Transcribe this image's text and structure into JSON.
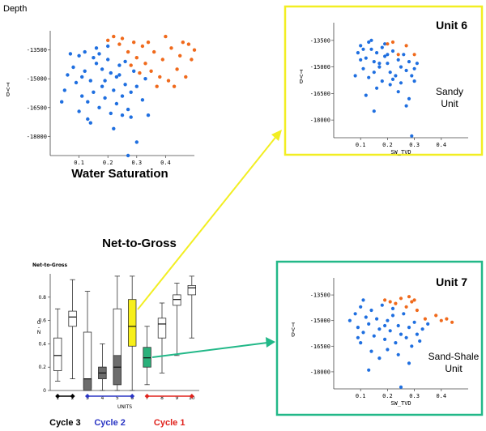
{
  "colors": {
    "blue": "#1f6fe0",
    "orange": "#f06a1c",
    "yellow_frame": "#f2ee22",
    "teal_frame": "#22b888",
    "yellow_box": "#f7ef1a",
    "teal_box": "#2ab07a",
    "grey_box": "#6d6d6d",
    "cycle3": "#000000",
    "cycle2": "#2a35c4",
    "cycle1": "#e0221c"
  },
  "chart_data": [
    {
      "type": "scatter",
      "panel": "main",
      "ylabel_top": "Depth",
      "ylabel": "TVD",
      "xlabel": "Water Saturation",
      "x_ticks": [
        "0.1",
        "0.2",
        "0.3",
        "0.4"
      ],
      "y_ticks": [
        "-13500",
        "-15000",
        "-16500",
        "-18000"
      ],
      "xlim": [
        0.0,
        0.5
      ],
      "ylim": [
        -19000,
        -12500
      ],
      "series": [
        {
          "color": "blue",
          "points": [
            [
              0.08,
              -14400
            ],
            [
              0.1,
              -13800
            ],
            [
              0.12,
              -14600
            ],
            [
              0.14,
              -15100
            ],
            [
              0.16,
              -14200
            ],
            [
              0.18,
              -15400
            ],
            [
              0.2,
              -14000
            ],
            [
              0.22,
              -15600
            ],
            [
              0.24,
              -14800
            ],
            [
              0.26,
              -15300
            ],
            [
              0.11,
              -15900
            ],
            [
              0.13,
              -16200
            ],
            [
              0.15,
              -15700
            ],
            [
              0.17,
              -16500
            ],
            [
              0.19,
              -16000
            ],
            [
              0.21,
              -16800
            ],
            [
              0.23,
              -16300
            ],
            [
              0.25,
              -15900
            ],
            [
              0.27,
              -16600
            ],
            [
              0.09,
              -15200
            ],
            [
              0.12,
              -13600
            ],
            [
              0.15,
              -13900
            ],
            [
              0.18,
              -14500
            ],
            [
              0.21,
              -14700
            ],
            [
              0.24,
              -14300
            ],
            [
              0.28,
              -15700
            ],
            [
              0.3,
              -15400
            ],
            [
              0.32,
              -16100
            ],
            [
              0.14,
              -17300
            ],
            [
              0.28,
              -17000
            ],
            [
              0.3,
              -18300
            ],
            [
              0.27,
              -19000
            ],
            [
              0.06,
              -14800
            ],
            [
              0.05,
              -15600
            ],
            [
              0.04,
              -16200
            ],
            [
              0.16,
              -13400
            ],
            [
              0.2,
              -13300
            ],
            [
              0.1,
              -16700
            ],
            [
              0.13,
              -17100
            ],
            [
              0.22,
              -17600
            ],
            [
              0.34,
              -16900
            ],
            [
              0.07,
              -13700
            ],
            [
              0.19,
              -15100
            ],
            [
              0.23,
              -14900
            ],
            [
              0.26,
              -14100
            ],
            [
              0.29,
              -14600
            ],
            [
              0.33,
              -15000
            ],
            [
              0.11,
              -14900
            ],
            [
              0.17,
              -13700
            ],
            [
              0.25,
              -16900
            ]
          ]
        },
        {
          "color": "orange",
          "points": [
            [
              0.2,
              -13000
            ],
            [
              0.24,
              -13200
            ],
            [
              0.27,
              -13600
            ],
            [
              0.3,
              -13900
            ],
            [
              0.33,
              -14200
            ],
            [
              0.36,
              -13600
            ],
            [
              0.39,
              -14000
            ],
            [
              0.42,
              -13400
            ],
            [
              0.45,
              -13800
            ],
            [
              0.48,
              -13200
            ],
            [
              0.35,
              -14600
            ],
            [
              0.38,
              -14900
            ],
            [
              0.41,
              -15100
            ],
            [
              0.44,
              -14500
            ],
            [
              0.47,
              -14900
            ],
            [
              0.32,
              -13300
            ],
            [
              0.29,
              -13100
            ],
            [
              0.25,
              -12900
            ],
            [
              0.49,
              -14000
            ],
            [
              0.43,
              -15400
            ],
            [
              0.37,
              -15400
            ],
            [
              0.34,
              -13100
            ],
            [
              0.4,
              -12800
            ],
            [
              0.46,
              -13100
            ],
            [
              0.28,
              -14300
            ],
            [
              0.31,
              -14700
            ],
            [
              0.5,
              -13500
            ],
            [
              0.22,
              -12800
            ]
          ]
        }
      ]
    },
    {
      "type": "scatter",
      "panel": "unit6",
      "title": "Unit 6",
      "annotation": "Sandy Unit",
      "xlabel": "SW_TVD",
      "ylabel": "TVD",
      "x_ticks": [
        "0.1",
        "0.2",
        "0.3",
        "0.4"
      ],
      "y_ticks": [
        "-13500",
        "-15000",
        "-16500",
        "-18000"
      ],
      "xlim": [
        0.0,
        0.5
      ],
      "ylim": [
        -19000,
        -12500
      ],
      "series": [
        {
          "color": "blue",
          "points": [
            [
              0.09,
              -14200
            ],
            [
              0.1,
              -13800
            ],
            [
              0.12,
              -14500
            ],
            [
              0.13,
              -13600
            ],
            [
              0.14,
              -14000
            ],
            [
              0.15,
              -14700
            ],
            [
              0.16,
              -14200
            ],
            [
              0.17,
              -15000
            ],
            [
              0.18,
              -13900
            ],
            [
              0.19,
              -14400
            ],
            [
              0.2,
              -14800
            ],
            [
              0.21,
              -15300
            ],
            [
              0.22,
              -14100
            ],
            [
              0.23,
              -15500
            ],
            [
              0.24,
              -14600
            ],
            [
              0.25,
              -15000
            ],
            [
              0.26,
              -14300
            ],
            [
              0.27,
              -15200
            ],
            [
              0.28,
              -14700
            ],
            [
              0.29,
              -15500
            ],
            [
              0.3,
              -15100
            ],
            [
              0.31,
              -14800
            ],
            [
              0.11,
              -15100
            ],
            [
              0.13,
              -15600
            ],
            [
              0.15,
              -15300
            ],
            [
              0.18,
              -15800
            ],
            [
              0.21,
              -16000
            ],
            [
              0.12,
              -16600
            ],
            [
              0.24,
              -16400
            ],
            [
              0.28,
              -16800
            ],
            [
              0.15,
              -17500
            ],
            [
              0.27,
              -17200
            ],
            [
              0.29,
              -18900
            ],
            [
              0.08,
              -15500
            ],
            [
              0.1,
              -14600
            ],
            [
              0.14,
              -13500
            ],
            [
              0.17,
              -14800
            ],
            [
              0.2,
              -14300
            ],
            [
              0.22,
              -15700
            ],
            [
              0.25,
              -15900
            ],
            [
              0.16,
              -16200
            ],
            [
              0.19,
              -13700
            ],
            [
              0.3,
              -15800
            ],
            [
              0.11,
              -14000
            ]
          ]
        },
        {
          "color": "orange",
          "points": [
            [
              0.2,
              -13700
            ],
            [
              0.22,
              -13600
            ],
            [
              0.24,
              -14300
            ],
            [
              0.3,
              -14300
            ],
            [
              0.27,
              -13800
            ]
          ]
        }
      ]
    },
    {
      "type": "scatter",
      "panel": "unit7",
      "title": "Unit 7",
      "annotation": "Sand-Shale Unit",
      "xlabel": "SW_TVD",
      "ylabel": "TVD",
      "x_ticks": [
        "0.1",
        "0.2",
        "0.3",
        "0.4"
      ],
      "y_ticks": [
        "-13500",
        "-15000",
        "-16500",
        "-18000"
      ],
      "xlim": [
        0.0,
        0.5
      ],
      "ylim": [
        -19000,
        -12500
      ],
      "series": [
        {
          "color": "blue",
          "points": [
            [
              0.06,
              -15000
            ],
            [
              0.08,
              -14600
            ],
            [
              0.09,
              -15400
            ],
            [
              0.1,
              -14200
            ],
            [
              0.11,
              -15700
            ],
            [
              0.12,
              -14800
            ],
            [
              0.13,
              -15200
            ],
            [
              0.14,
              -14400
            ],
            [
              0.15,
              -15900
            ],
            [
              0.16,
              -14900
            ],
            [
              0.17,
              -15500
            ],
            [
              0.18,
              -14100
            ],
            [
              0.19,
              -16100
            ],
            [
              0.2,
              -15000
            ],
            [
              0.21,
              -15600
            ],
            [
              0.22,
              -14700
            ],
            [
              0.23,
              -16300
            ],
            [
              0.24,
              -15300
            ],
            [
              0.25,
              -15800
            ],
            [
              0.26,
              -14600
            ],
            [
              0.27,
              -16000
            ],
            [
              0.28,
              -15400
            ],
            [
              0.29,
              -16500
            ],
            [
              0.3,
              -15100
            ],
            [
              0.31,
              -15800
            ],
            [
              0.32,
              -16200
            ],
            [
              0.1,
              -16300
            ],
            [
              0.14,
              -16800
            ],
            [
              0.17,
              -17200
            ],
            [
              0.24,
              -17000
            ],
            [
              0.28,
              -17500
            ],
            [
              0.13,
              -17900
            ],
            [
              0.25,
              -18900
            ],
            [
              0.2,
              -16700
            ],
            [
              0.22,
              -14300
            ],
            [
              0.11,
              -13800
            ],
            [
              0.09,
              -16000
            ],
            [
              0.33,
              -15500
            ],
            [
              0.35,
              -15200
            ],
            [
              0.19,
              -15300
            ]
          ]
        },
        {
          "color": "orange",
          "points": [
            [
              0.19,
              -13800
            ],
            [
              0.21,
              -13900
            ],
            [
              0.23,
              -14000
            ],
            [
              0.25,
              -13700
            ],
            [
              0.27,
              -14200
            ],
            [
              0.29,
              -13900
            ],
            [
              0.31,
              -14400
            ],
            [
              0.34,
              -14900
            ],
            [
              0.38,
              -14700
            ],
            [
              0.4,
              -15000
            ],
            [
              0.42,
              -14900
            ],
            [
              0.44,
              -15100
            ],
            [
              0.28,
              -13600
            ],
            [
              0.3,
              -13800
            ]
          ]
        }
      ]
    },
    {
      "type": "box",
      "panel": "ntg",
      "title": "Net-to-Gross",
      "chart_title": "Net-to-Gross",
      "ylabel": "G-N",
      "xlabel": "UNITS",
      "y_ticks": [
        "0",
        "0.2",
        "0.4",
        "0.6",
        "0.8"
      ],
      "ylim": [
        0,
        1
      ],
      "categories": [
        "1",
        "2",
        "3",
        "4",
        "5",
        "6",
        "7",
        "8",
        "9",
        "10"
      ],
      "boxes": [
        {
          "unit": "1",
          "min": 0.08,
          "q1": 0.17,
          "median": 0.3,
          "q3": 0.45,
          "max": 0.7,
          "fill": "white"
        },
        {
          "unit": "2",
          "min": 0.1,
          "q1": 0.55,
          "median": 0.63,
          "q3": 0.68,
          "max": 0.95,
          "fill": "white"
        },
        {
          "unit": "3",
          "min": 0.0,
          "q1": 0.02,
          "median": 0.1,
          "q3": 0.5,
          "max": 0.85,
          "fill": "white",
          "low": [
            0.0,
            0.1
          ],
          "lowfill": "grey"
        },
        {
          "unit": "4",
          "min": 0.0,
          "q1": 0.1,
          "median": 0.15,
          "q3": 0.2,
          "max": 0.4,
          "fill": "white",
          "low": [
            0.1,
            0.2
          ],
          "lowfill": "grey"
        },
        {
          "unit": "5",
          "min": 0.0,
          "q1": 0.05,
          "median": 0.2,
          "q3": 0.7,
          "max": 0.98,
          "fill": "white",
          "low": [
            0.05,
            0.3
          ],
          "lowfill": "grey"
        },
        {
          "unit": "6",
          "min": 0.0,
          "q1": 0.38,
          "median": 0.55,
          "q3": 0.78,
          "max": 0.98,
          "fill": "yellow_box"
        },
        {
          "unit": "7",
          "min": 0.05,
          "q1": 0.2,
          "median": 0.28,
          "q3": 0.37,
          "max": 0.55,
          "fill": "teal_box"
        },
        {
          "unit": "8",
          "min": 0.15,
          "q1": 0.45,
          "median": 0.57,
          "q3": 0.62,
          "max": 0.75,
          "fill": "white"
        },
        {
          "unit": "9",
          "min": 0.3,
          "q1": 0.73,
          "median": 0.78,
          "q3": 0.82,
          "max": 0.92,
          "fill": "white"
        },
        {
          "unit": "10",
          "min": 0.45,
          "q1": 0.82,
          "median": 0.88,
          "q3": 0.9,
          "max": 0.98,
          "fill": "white"
        }
      ],
      "cycles": [
        {
          "label": "Cycle 3",
          "color": "cycle3",
          "from": "1",
          "to": "2"
        },
        {
          "label": "Cycle 2",
          "color": "cycle2",
          "from": "3",
          "to": "6"
        },
        {
          "label": "Cycle 1",
          "color": "cycle1",
          "from": "7",
          "to": "10"
        }
      ]
    }
  ]
}
